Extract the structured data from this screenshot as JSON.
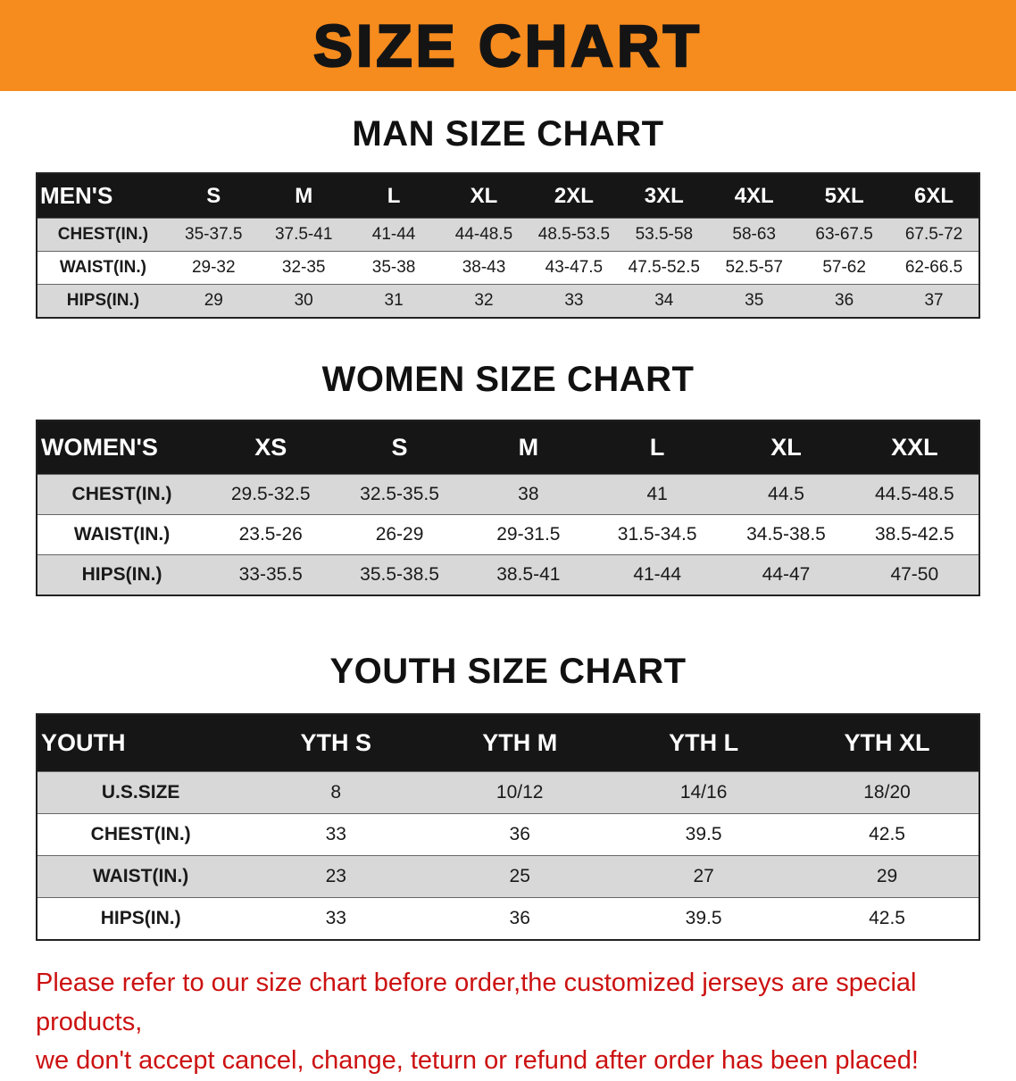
{
  "banner": {
    "title": "SIZE CHART"
  },
  "colors": {
    "banner_bg": "#f68b1e",
    "header_bar": "#161616",
    "stripe_gray": "#d8d8d8",
    "disclaimer_red": "#cc1111"
  },
  "sections": [
    {
      "id": "men",
      "heading": "MAN SIZE CHART",
      "table": {
        "header": [
          "MEN'S",
          "S",
          "M",
          "L",
          "XL",
          "2XL",
          "3XL",
          "4XL",
          "5XL",
          "6XL"
        ],
        "rows": [
          {
            "label": "CHEST(IN.)",
            "values": [
              "35-37.5",
              "37.5-41",
              "41-44",
              "44-48.5",
              "48.5-53.5",
              "53.5-58",
              "58-63",
              "63-67.5",
              "67.5-72"
            ]
          },
          {
            "label": "WAIST(IN.)",
            "values": [
              "29-32",
              "32-35",
              "35-38",
              "38-43",
              "43-47.5",
              "47.5-52.5",
              "52.5-57",
              "57-62",
              "62-66.5"
            ]
          },
          {
            "label": "HIPS(IN.)",
            "values": [
              "29",
              "30",
              "31",
              "32",
              "33",
              "34",
              "35",
              "36",
              "37"
            ]
          }
        ]
      }
    },
    {
      "id": "women",
      "heading": "WOMEN SIZE CHART",
      "table": {
        "header": [
          "WOMEN'S",
          "XS",
          "S",
          "M",
          "L",
          "XL",
          "XXL"
        ],
        "rows": [
          {
            "label": "CHEST(IN.)",
            "values": [
              "29.5-32.5",
              "32.5-35.5",
              "38",
              "41",
              "44.5",
              "44.5-48.5"
            ]
          },
          {
            "label": "WAIST(IN.)",
            "values": [
              "23.5-26",
              "26-29",
              "29-31.5",
              "31.5-34.5",
              "34.5-38.5",
              "38.5-42.5"
            ]
          },
          {
            "label": "HIPS(IN.)",
            "values": [
              "33-35.5",
              "35.5-38.5",
              "38.5-41",
              "41-44",
              "44-47",
              "47-50"
            ]
          }
        ]
      }
    },
    {
      "id": "youth",
      "heading": "YOUTH SIZE CHART",
      "table": {
        "header": [
          "YOUTH",
          "YTH S",
          "YTH M",
          "YTH L",
          "YTH XL"
        ],
        "rows": [
          {
            "label": "U.S.SIZE",
            "values": [
              "8",
              "10/12",
              "14/16",
              "18/20"
            ]
          },
          {
            "label": "CHEST(IN.)",
            "values": [
              "33",
              "36",
              "39.5",
              "42.5"
            ]
          },
          {
            "label": "WAIST(IN.)",
            "values": [
              "23",
              "25",
              "27",
              "29"
            ]
          },
          {
            "label": "HIPS(IN.)",
            "values": [
              "33",
              "36",
              "39.5",
              "42.5"
            ]
          }
        ]
      }
    }
  ],
  "disclaimer": {
    "line1": "Please refer to our size chart before order,the customized jerseys are special products,",
    "line2": "we don't accept cancel, change, teturn or refund after order has been placed!"
  }
}
